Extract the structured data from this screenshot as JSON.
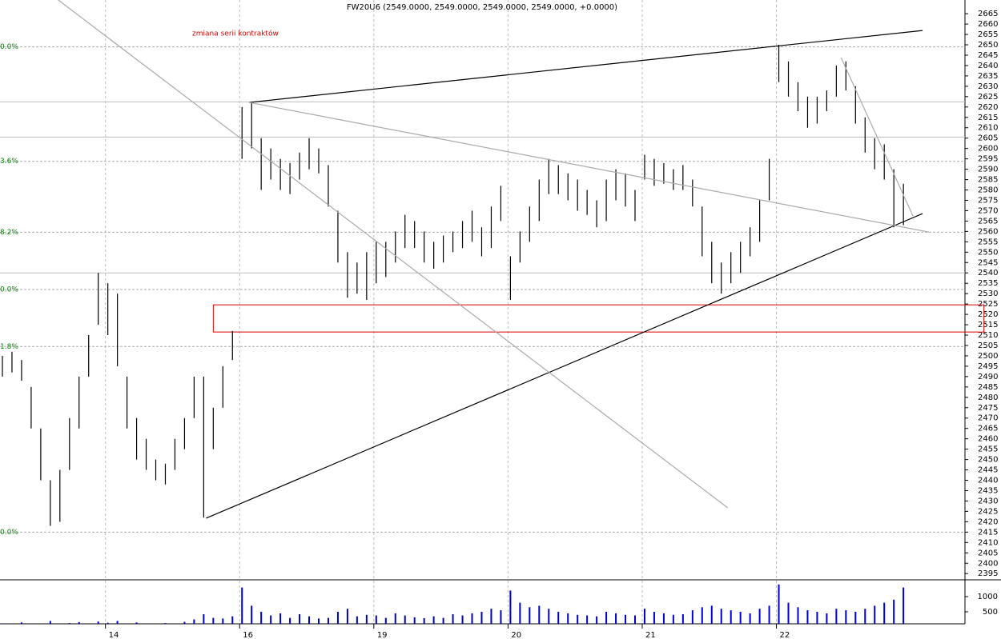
{
  "chart_data": {
    "type": "hl",
    "title": "FW20U6 (2549.0000, 2549.0000, 2549.0000, 2549.0000, +0.0000)",
    "note": "zmiana serii kontraktów",
    "x": [
      0,
      1,
      2,
      3,
      4,
      5,
      6,
      7,
      8,
      9,
      10,
      11,
      12,
      13,
      14,
      15,
      16,
      17,
      18,
      19,
      20,
      21,
      22,
      23,
      24,
      25,
      26,
      27,
      28,
      29,
      30,
      31,
      32,
      33,
      34,
      35,
      36,
      37,
      38,
      39,
      40,
      41,
      42,
      43,
      44,
      45,
      46,
      47,
      48,
      49,
      50,
      51,
      52,
      53,
      54,
      55,
      56,
      57,
      58,
      59,
      60,
      61,
      62,
      63,
      64,
      65,
      66,
      67,
      68,
      69,
      70,
      71,
      72,
      73,
      74,
      75,
      76,
      77,
      78,
      79,
      80,
      81,
      82,
      83,
      84,
      85,
      86,
      87,
      88,
      89,
      90,
      91,
      92,
      93,
      94
    ],
    "high": [
      2500,
      2502,
      2498,
      2485,
      2465,
      2440,
      2445,
      2470,
      2490,
      2510,
      2540,
      2535,
      2530,
      2490,
      2470,
      2460,
      2450,
      2448,
      2460,
      2470,
      2490,
      2490,
      2475,
      2495,
      2512,
      2620,
      2622,
      2605,
      2600,
      2595,
      2593,
      2598,
      2605,
      2600,
      2592,
      2570,
      2550,
      2545,
      2550,
      2555,
      2555,
      2560,
      2568,
      2565,
      2560,
      2555,
      2558,
      2560,
      2565,
      2570,
      2562,
      2572,
      2582,
      2548,
      2560,
      2572,
      2585,
      2595,
      2592,
      2588,
      2585,
      2580,
      2575,
      2585,
      2590,
      2588,
      2580,
      2597,
      2595,
      2593,
      2590,
      2592,
      2585,
      2572,
      2555,
      2545,
      2550,
      2555,
      2562,
      2575,
      2595,
      2650,
      2642,
      2632,
      2625,
      2625,
      2628,
      2640,
      2642,
      2630,
      2615,
      2605,
      2602,
      2590,
      2583
    ],
    "low": [
      2490,
      2492,
      2488,
      2465,
      2440,
      2418,
      2420,
      2445,
      2465,
      2490,
      2515,
      2510,
      2495,
      2465,
      2450,
      2445,
      2440,
      2438,
      2445,
      2455,
      2470,
      2422,
      2455,
      2475,
      2498,
      2595,
      2600,
      2580,
      2585,
      2580,
      2578,
      2585,
      2590,
      2588,
      2572,
      2545,
      2528,
      2530,
      2527,
      2535,
      2538,
      2545,
      2552,
      2552,
      2545,
      2542,
      2545,
      2550,
      2552,
      2555,
      2548,
      2552,
      2565,
      2527,
      2545,
      2555,
      2565,
      2578,
      2578,
      2575,
      2570,
      2568,
      2562,
      2565,
      2575,
      2572,
      2565,
      2585,
      2582,
      2583,
      2580,
      2580,
      2572,
      2548,
      2535,
      2530,
      2535,
      2540,
      2548,
      2555,
      2575,
      2632,
      2625,
      2618,
      2610,
      2612,
      2618,
      2625,
      2628,
      2612,
      2598,
      2590,
      2585,
      2562,
      2563
    ],
    "volume": [
      120,
      80,
      150,
      100,
      90,
      200,
      110,
      130,
      160,
      90,
      180,
      140,
      200,
      120,
      150,
      110,
      90,
      130,
      100,
      170,
      250,
      420,
      300,
      280,
      350,
      1300,
      700,
      500,
      380,
      450,
      300,
      420,
      350,
      280,
      300,
      500,
      600,
      350,
      400,
      380,
      300,
      450,
      380,
      320,
      290,
      350,
      300,
      420,
      380,
      450,
      500,
      600,
      550,
      1200,
      800,
      650,
      700,
      600,
      500,
      450,
      400,
      380,
      350,
      500,
      450,
      400,
      380,
      600,
      500,
      450,
      400,
      420,
      550,
      650,
      700,
      600,
      550,
      500,
      450,
      600,
      700,
      1400,
      800,
      650,
      550,
      500,
      450,
      600,
      550,
      500,
      600,
      700,
      800,
      900,
      1300
    ],
    "xlim": [
      -0.25,
      100.42
    ],
    "xticks": [
      {
        "value": 10.75,
        "label": "14"
      },
      {
        "value": 24.75,
        "label": "16"
      },
      {
        "value": 38.75,
        "label": "19"
      },
      {
        "value": 52.75,
        "label": "20"
      },
      {
        "value": 66.75,
        "label": "21"
      },
      {
        "value": 80.75,
        "label": "22"
      }
    ],
    "ylim": [
      2392,
      2671.6
    ],
    "yticks": [
      2395,
      2400,
      2405,
      2410,
      2415,
      2420,
      2425,
      2430,
      2435,
      2440,
      2445,
      2450,
      2455,
      2460,
      2465,
      2470,
      2475,
      2480,
      2485,
      2490,
      2495,
      2500,
      2505,
      2510,
      2515,
      2520,
      2525,
      2530,
      2535,
      2540,
      2545,
      2550,
      2555,
      2560,
      2565,
      2570,
      2575,
      2580,
      2585,
      2590,
      2595,
      2600,
      2605,
      2610,
      2615,
      2620,
      2625,
      2630,
      2635,
      2640,
      2645,
      2650,
      2655,
      2660,
      2665
    ],
    "y2lim": [
      0,
      1500
    ],
    "y2ticks": [
      500,
      1000
    ],
    "fib": [
      {
        "value": 2649,
        "label": "0.0%"
      },
      {
        "value": 2593.8,
        "label": "3.6%"
      },
      {
        "value": 2559.6,
        "label": "8.2%"
      },
      {
        "value": 2532,
        "label": "0.0%"
      },
      {
        "value": 2504.5,
        "label": "1.8%"
      },
      {
        "value": 2415,
        "label": "0.0%"
      }
    ],
    "hlines": [
      2622.5,
      2605.5,
      2540
    ],
    "lines": [
      {
        "color": "#000000",
        "points": [
          25.75,
          2622.2,
          96,
          2656.9
        ]
      },
      {
        "color": "#000000",
        "points": [
          21.25,
          2421.7,
          96,
          2568.6
        ]
      },
      {
        "color": "#aaaaaa",
        "points": [
          5.83,
          2671.6,
          75.67,
          2426.7
        ]
      },
      {
        "color": "#aaaaaa",
        "points": [
          25.75,
          2622.2,
          96.67,
          2559.7
        ]
      },
      {
        "color": "#aaaaaa",
        "points": [
          87.5,
          2643.8,
          95,
          2567.4
        ]
      }
    ],
    "zone": {
      "color": "#dd0000",
      "points": [
        22,
        2524.6,
        102.4,
        2511.5
      ]
    },
    "bar_color": "#000000",
    "volume_color": "#0000cc",
    "fib_color": "#008000",
    "note_color": "#cc0000"
  }
}
